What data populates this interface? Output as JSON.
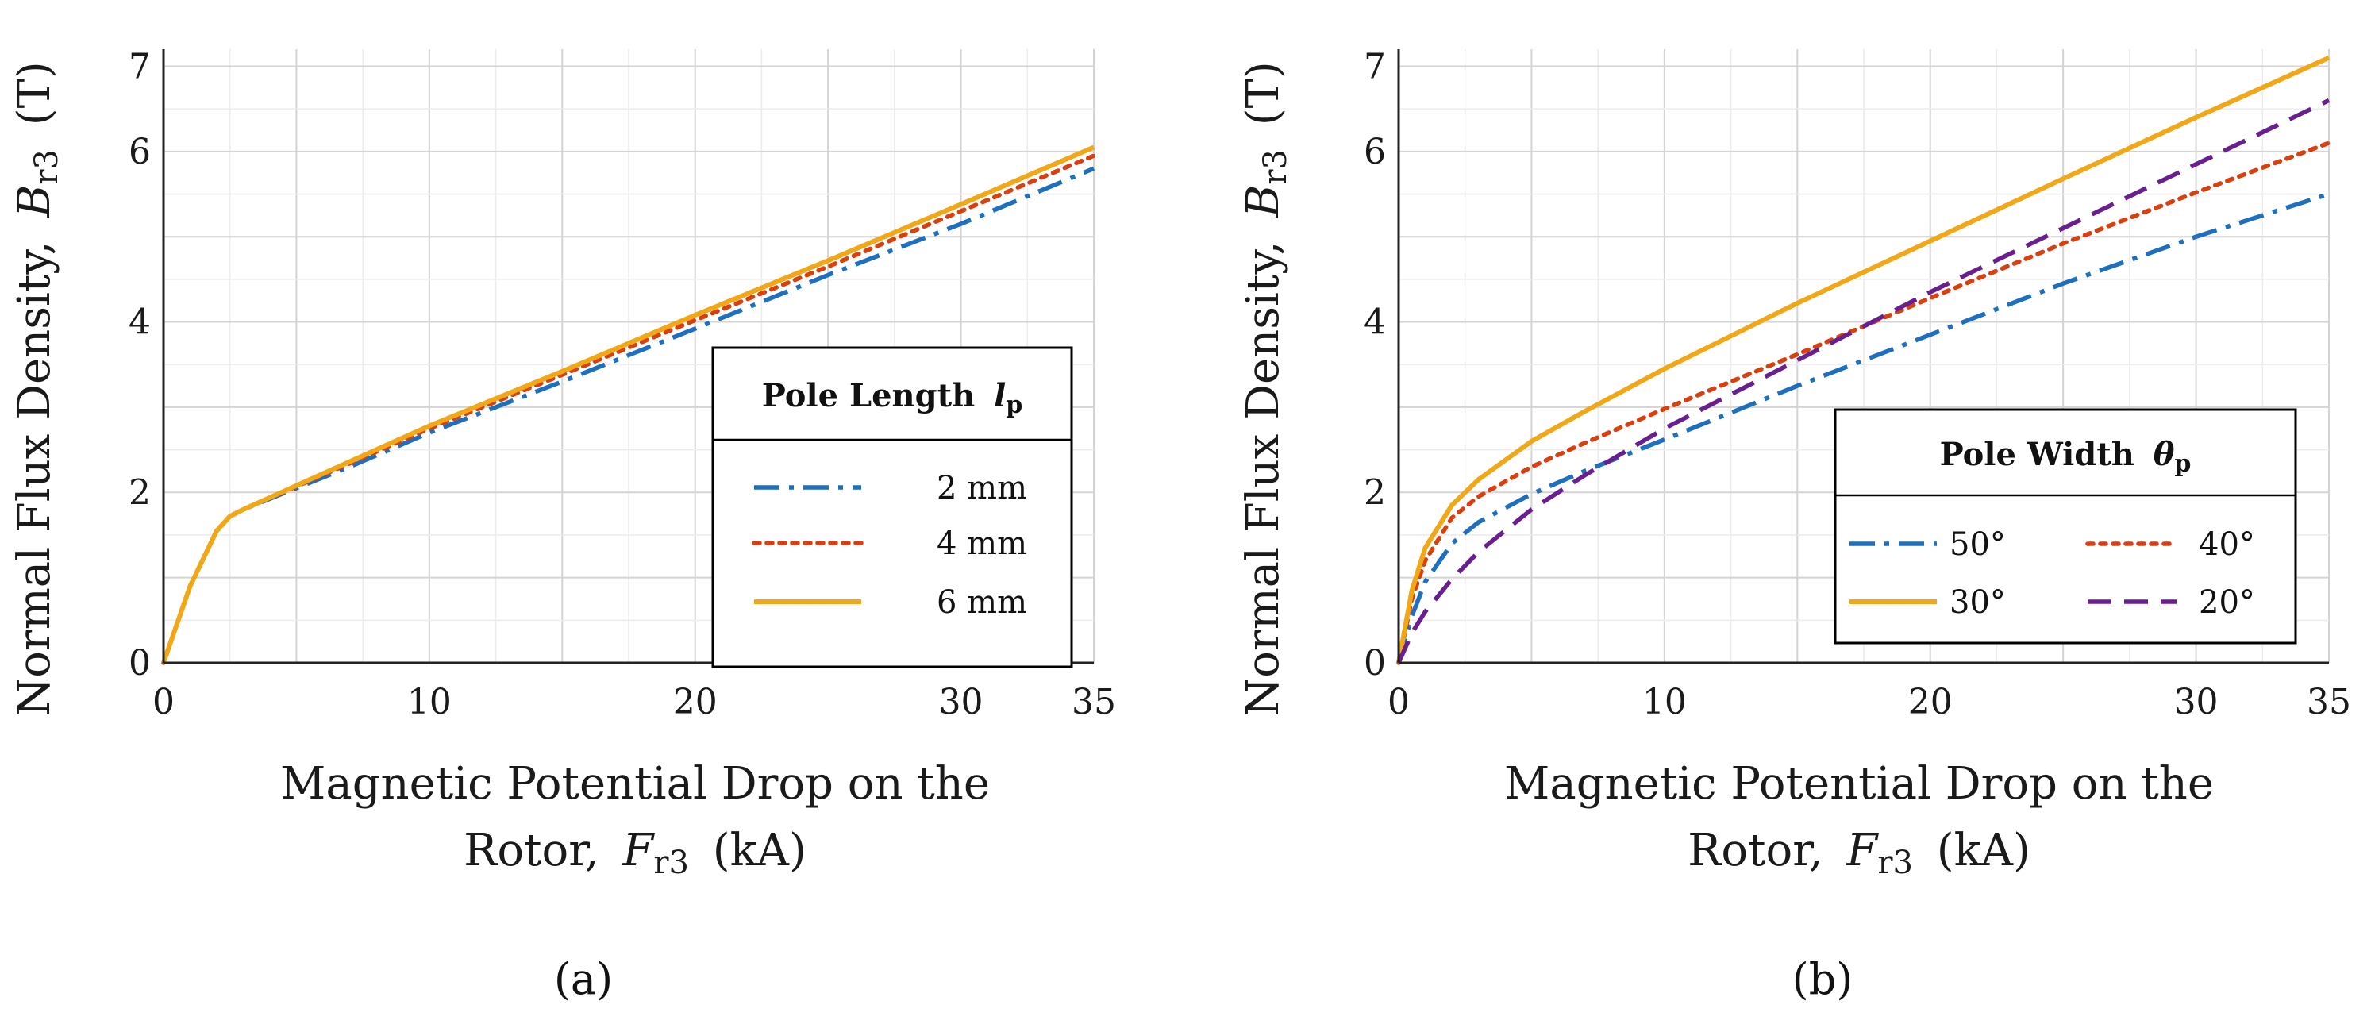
{
  "colors": {
    "blue": "#1f6fbf",
    "red": "#d9400f",
    "yellow": "#f0a818",
    "purple": "#6a1f8f"
  },
  "chart_data": [
    {
      "id": "a",
      "type": "line",
      "caption": "(a)",
      "ylabel_main": "Normal Flux Density,",
      "ylabel_var": "B",
      "ylabel_sub": "r3",
      "ylabel_unit": "(T)",
      "xlabel_line1": "Magnetic Potential Drop on the",
      "xlabel_line2_pre": "Rotor,",
      "xlabel_var": "F",
      "xlabel_sub": "r3",
      "xlabel_unit": "(kA)",
      "xlim": [
        0,
        35
      ],
      "ylim": [
        0,
        7.2
      ],
      "xticks": [
        0,
        10,
        20,
        30,
        35
      ],
      "xtick_labels": [
        "0",
        "10",
        "20",
        "30",
        "35"
      ],
      "yticks": [
        0,
        2,
        4,
        6,
        7
      ],
      "ytick_labels": [
        "0",
        "2",
        "4",
        "6",
        "7"
      ],
      "grid": true,
      "legend": {
        "title_pre": "Pole Length",
        "title_var": "l",
        "title_sub": "p",
        "position": "center-right"
      },
      "series": [
        {
          "name": "2 mm",
          "color": "blue",
          "style": "dashdot",
          "x": [
            0,
            0.5,
            1,
            2,
            2.5,
            3,
            5,
            7,
            10,
            15,
            20,
            25,
            30,
            35
          ],
          "values": [
            0,
            0.45,
            0.9,
            1.55,
            1.72,
            1.8,
            2.05,
            2.3,
            2.7,
            3.3,
            3.92,
            4.55,
            5.15,
            5.8
          ]
        },
        {
          "name": "4 mm",
          "color": "red",
          "style": "dotted",
          "x": [
            0,
            0.5,
            1,
            2,
            2.5,
            3,
            5,
            7,
            10,
            15,
            20,
            25,
            30,
            35
          ],
          "values": [
            0,
            0.45,
            0.9,
            1.55,
            1.72,
            1.8,
            2.07,
            2.34,
            2.75,
            3.38,
            4.02,
            4.65,
            5.3,
            5.95
          ]
        },
        {
          "name": "6 mm",
          "color": "yellow",
          "style": "solid",
          "x": [
            0,
            0.5,
            1,
            2,
            2.5,
            3,
            5,
            7,
            10,
            15,
            20,
            25,
            30,
            35
          ],
          "values": [
            0,
            0.45,
            0.9,
            1.55,
            1.72,
            1.8,
            2.08,
            2.36,
            2.78,
            3.42,
            4.08,
            4.72,
            5.38,
            6.05
          ]
        }
      ]
    },
    {
      "id": "b",
      "type": "line",
      "caption": "(b)",
      "ylabel_main": "Normal Flux Density,",
      "ylabel_var": "B",
      "ylabel_sub": "r3",
      "ylabel_unit": "(T)",
      "xlabel_line1": "Magnetic Potential Drop on the",
      "xlabel_line2_pre": "Rotor,",
      "xlabel_var": "F",
      "xlabel_sub": "r3",
      "xlabel_unit": "(kA)",
      "xlim": [
        0,
        35
      ],
      "ylim": [
        0,
        7.2
      ],
      "xticks": [
        0,
        10,
        20,
        30,
        35
      ],
      "xtick_labels": [
        "0",
        "10",
        "20",
        "30",
        "35"
      ],
      "yticks": [
        0,
        2,
        4,
        6,
        7
      ],
      "ytick_labels": [
        "0",
        "2",
        "4",
        "6",
        "7"
      ],
      "grid": true,
      "legend": {
        "title_pre": "Pole Width",
        "title_var": "θ",
        "title_sub": "p",
        "position": "lower-right",
        "columns": 2
      },
      "series": [
        {
          "name": "50°",
          "color": "blue",
          "style": "dashdot",
          "x": [
            0,
            0.5,
            1,
            2,
            3,
            5,
            7,
            10,
            15,
            20,
            25,
            30,
            35
          ],
          "values": [
            0,
            0.55,
            0.95,
            1.4,
            1.65,
            1.98,
            2.25,
            2.62,
            3.25,
            3.85,
            4.45,
            5.0,
            5.5
          ]
        },
        {
          "name": "40°",
          "color": "red",
          "style": "dotted",
          "x": [
            0,
            0.5,
            1,
            2,
            3,
            5,
            7,
            10,
            15,
            20,
            25,
            30,
            35
          ],
          "values": [
            0,
            0.75,
            1.2,
            1.7,
            1.95,
            2.3,
            2.58,
            2.98,
            3.62,
            4.28,
            4.92,
            5.52,
            6.1
          ]
        },
        {
          "name": "30°",
          "color": "yellow",
          "style": "solid",
          "x": [
            0,
            0.5,
            1,
            2,
            3,
            5,
            7,
            10,
            15,
            20,
            25,
            30,
            35
          ],
          "values": [
            0,
            0.85,
            1.35,
            1.85,
            2.15,
            2.6,
            2.95,
            3.45,
            4.22,
            4.95,
            5.68,
            6.4,
            7.1
          ]
        },
        {
          "name": "20°",
          "color": "purple",
          "style": "dashed",
          "x": [
            0,
            0.5,
            1,
            2,
            3,
            5,
            7,
            10,
            15,
            20,
            25,
            30,
            35
          ],
          "values": [
            0,
            0.35,
            0.6,
            0.98,
            1.3,
            1.8,
            2.2,
            2.75,
            3.55,
            4.35,
            5.1,
            5.85,
            6.6
          ]
        }
      ]
    }
  ]
}
